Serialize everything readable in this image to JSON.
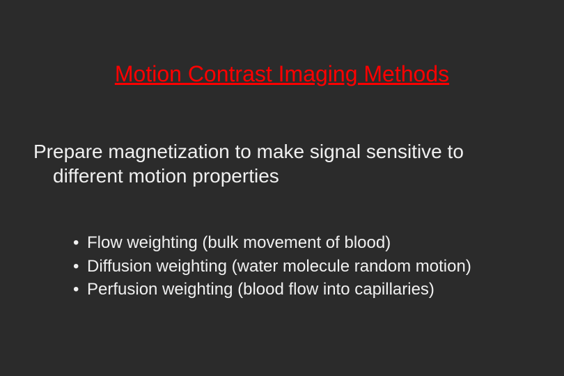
{
  "background_color": "#2b2b2b",
  "title": {
    "text": "Motion Contrast Imaging Methods",
    "color": "#ff0000",
    "fontsize": 32,
    "underline": true
  },
  "subtitle": {
    "line1": "Prepare magnetization to make signal sensitive to",
    "line2": "different motion properties",
    "color": "#f0f0f0",
    "fontsize": 28
  },
  "bullets": {
    "color": "#f0f0f0",
    "fontsize": 24,
    "items": [
      "Flow weighting (bulk movement of blood)",
      "Diffusion weighting (water molecule random motion)",
      "Perfusion weighting (blood flow into capillaries)"
    ]
  }
}
